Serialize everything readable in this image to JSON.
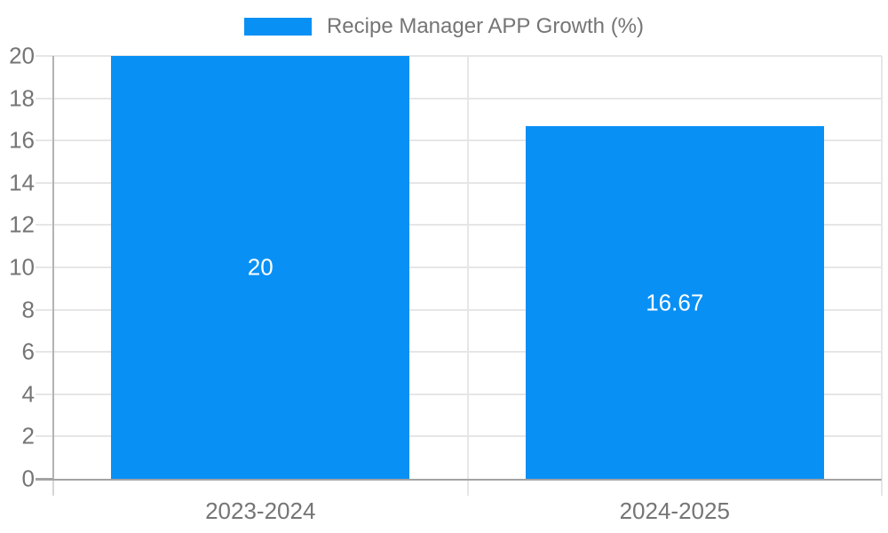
{
  "legend": {
    "label": "Recipe Manager APP Growth (%)"
  },
  "colors": {
    "bar": "#0990f5",
    "text": "#757575",
    "gridline": "#e6e6e6",
    "axis_y": "#b3b3b3",
    "axis_x": "#a3a3a3",
    "tick": "#d6d6d6",
    "data_label": "#ffffff",
    "background": "#ffffff"
  },
  "chart_data": {
    "type": "bar",
    "title": "Recipe Manager APP Growth (%)",
    "categories": [
      "2023-2024",
      "2024-2025"
    ],
    "values": [
      20,
      16.67
    ],
    "value_labels": [
      "20",
      "16.67"
    ],
    "xlabel": "",
    "ylabel": "",
    "ylim": [
      0,
      20
    ],
    "yticks": [
      0,
      2,
      4,
      6,
      8,
      10,
      12,
      14,
      16,
      18,
      20
    ],
    "grid": true,
    "legend_position": "top",
    "data_labels_position": "center-inside",
    "series": [
      {
        "name": "Recipe Manager APP Growth (%)",
        "values": [
          20,
          16.67
        ]
      }
    ]
  }
}
